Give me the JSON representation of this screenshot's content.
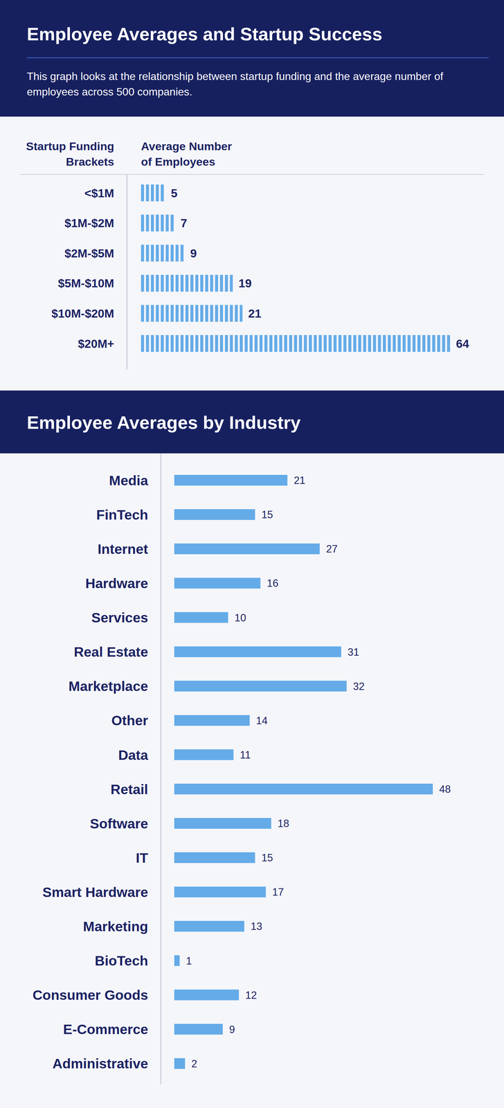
{
  "chart_data": [
    {
      "type": "bar",
      "title": "Employee Averages and Startup Success",
      "subtitle": "This graph looks at the relationship between startup funding and the average number of employees across 500 companies.",
      "y_label": "Startup Funding Brackets",
      "x_label": "Average Number of Employees",
      "categories": [
        "<$1M",
        "$1M-$2M",
        "$2M-$5M",
        "$5M-$10M",
        "$10M-$20M",
        "$20M+"
      ],
      "values": [
        5,
        7,
        9,
        19,
        21,
        64
      ],
      "color": "#64abe8",
      "xlim": [
        0,
        64
      ],
      "orientation": "horizontal",
      "data_labels": true,
      "tick_labels": "y",
      "grid": false
    },
    {
      "type": "bar",
      "title": "Employee Averages by Industry",
      "categories": [
        "Media",
        "FinTech",
        "Internet",
        "Hardware",
        "Services",
        "Real Estate",
        "Marketplace",
        "Other",
        "Data",
        "Retail",
        "Software",
        "IT",
        "Smart Hardware",
        "Marketing",
        "BioTech",
        "Consumer Goods",
        "E-Commerce",
        "Administrative"
      ],
      "values": [
        21,
        15,
        27,
        16,
        10,
        31,
        32,
        14,
        11,
        48,
        18,
        15,
        17,
        13,
        1,
        12,
        9,
        2
      ],
      "color": "#64abe8",
      "xlim": [
        0,
        48
      ],
      "orientation": "horizontal",
      "data_labels": true,
      "tick_labels": "y",
      "grid": false
    }
  ]
}
